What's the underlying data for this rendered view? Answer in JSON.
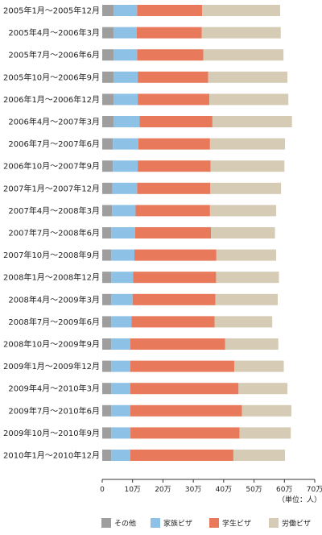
{
  "chart_data": {
    "type": "bar",
    "orientation": "horizontal",
    "stacked": true,
    "categories": [
      "2005年1月～2005年12月",
      "2005年4月～2006年3月",
      "2005年7月～2006年6月",
      "2005年10月～2006年9月",
      "2006年1月～2006年12月",
      "2006年4月～2007年3月",
      "2006年7月～2007年6月",
      "2006年10月～2007年9月",
      "2007年1月～2007年12月",
      "2007年4月～2008年3月",
      "2007年7月～2008年6月",
      "2007年10月～2008年9月",
      "2008年1月～2008年12月",
      "2008年4月～2009年3月",
      "2008年7月～2009年6月",
      "2008年10月～2009年9月",
      "2009年1月～2009年12月",
      "2009年4月～2010年3月",
      "2009年7月～2010年6月",
      "2009年10月～2010年9月",
      "2010年1月～2010年12月"
    ],
    "series": [
      {
        "name": "その他",
        "color": "#9e9e9e",
        "values": [
          37000,
          37000,
          37000,
          37000,
          37000,
          37000,
          35000,
          35000,
          33000,
          32000,
          30000,
          30000,
          30000,
          30000,
          30000,
          30000,
          30000,
          30000,
          30000,
          30000,
          30000
        ]
      },
      {
        "name": "家族ビザ",
        "color": "#8ec1e6",
        "values": [
          78000,
          77000,
          78000,
          80000,
          80000,
          86000,
          84000,
          82000,
          82000,
          78000,
          78000,
          76000,
          72000,
          70000,
          66000,
          62000,
          62000,
          62000,
          62000,
          63000,
          62000
        ]
      },
      {
        "name": "学生ビザ",
        "color": "#e8795a",
        "values": [
          214000,
          214000,
          218000,
          232000,
          236000,
          240000,
          236000,
          240000,
          241000,
          245000,
          250000,
          270000,
          273000,
          273000,
          274000,
          313000,
          343000,
          357000,
          368000,
          359000,
          340000
        ]
      },
      {
        "name": "労働ビザ",
        "color": "#d6ccb6",
        "values": [
          257000,
          260000,
          264000,
          261000,
          260000,
          262000,
          247000,
          243000,
          233000,
          218000,
          211000,
          197000,
          207000,
          205000,
          190000,
          175000,
          163000,
          161000,
          163000,
          169000,
          170000
        ]
      }
    ],
    "xlim": [
      0,
      700000
    ],
    "xticks": [
      "0",
      "10万",
      "20万",
      "30万",
      "40万",
      "50万",
      "60万",
      "70万"
    ],
    "unit_label": "（単位：人）",
    "legend_position": "bottom",
    "grid": false
  }
}
